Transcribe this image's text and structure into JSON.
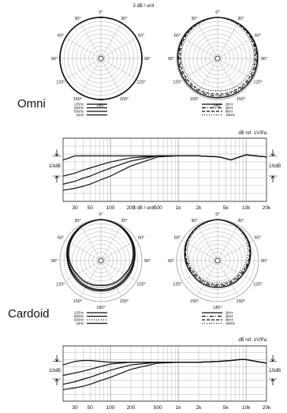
{
  "header_units": "3 dB / unit",
  "sections": [
    {
      "title": "Omni",
      "polar_scale": "3 dB / unit",
      "angles": [
        "0°",
        "30°",
        "60°",
        "90°",
        "120°",
        "150°",
        "180°",
        "150°",
        "120°",
        "90°",
        "60°",
        "30°"
      ],
      "legend_left": [
        {
          "label": "125Hz",
          "style": "solid"
        },
        {
          "label": "250Hz",
          "style": "solid"
        },
        {
          "label": "500Hz",
          "style": "solid"
        },
        {
          "label": "1kHz",
          "style": "solid"
        }
      ],
      "legend_right": [
        {
          "label": "2kHz",
          "style": "solid"
        },
        {
          "label": "4kHz",
          "style": "dashdot"
        },
        {
          "label": "8kHz",
          "style": "dash"
        },
        {
          "label": "16kHz",
          "style": "dot"
        }
      ],
      "freq": {
        "ref_label": "dB ref. 1V/Pa",
        "scale_left": "10dB",
        "scale_right": "10dB",
        "ticks": [
          "30",
          "50",
          "100",
          "200",
          "500",
          "1k",
          "2k",
          "5k",
          "10k",
          "20k"
        ]
      }
    },
    {
      "title": "Cardoid",
      "polar_scale": "3 dB / unit",
      "angles": [
        "0°",
        "30°",
        "60°",
        "90°",
        "120°",
        "150°",
        "180°",
        "150°",
        "120°",
        "90°",
        "60°",
        "30°"
      ],
      "legend_left": [
        {
          "label": "125Hz",
          "style": "solid"
        },
        {
          "label": "250Hz",
          "style": "solid"
        },
        {
          "label": "500Hz",
          "style": "dot"
        },
        {
          "label": "1kHz",
          "style": "solid"
        }
      ],
      "legend_right": [
        {
          "label": "2kHz",
          "style": "solid"
        },
        {
          "label": "4kHz",
          "style": "dashdot"
        },
        {
          "label": "8kHz",
          "style": "dash"
        },
        {
          "label": "16kHz",
          "style": "dot"
        }
      ],
      "freq": {
        "ref_label": "dB ref. 1V/Pa",
        "scale_left": "10dB",
        "scale_right": "10dB",
        "ticks": [
          "30",
          "50",
          "100",
          "200",
          "500",
          "1k",
          "2k",
          "5k",
          "10k",
          "20k"
        ]
      }
    }
  ],
  "chart_data": [
    {
      "type": "polar",
      "section": "Omni",
      "position": "left",
      "series": [
        {
          "name": "125Hz",
          "values_db": [
            0,
            0,
            0,
            0,
            0,
            0,
            0
          ]
        },
        {
          "name": "250Hz",
          "values_db": [
            0,
            0,
            0,
            0,
            0,
            0,
            0
          ]
        },
        {
          "name": "500Hz",
          "values_db": [
            0,
            0,
            0,
            0,
            0,
            0,
            0
          ]
        },
        {
          "name": "1kHz",
          "values_db": [
            0,
            0,
            0,
            0,
            0,
            0,
            0
          ]
        }
      ],
      "angles_deg": [
        0,
        30,
        60,
        90,
        120,
        150,
        180
      ]
    },
    {
      "type": "polar",
      "section": "Omni",
      "position": "right",
      "series": [
        {
          "name": "2kHz",
          "values_db": [
            0,
            -0.3,
            -0.5,
            -0.8,
            -1,
            -1.2,
            -1.3
          ]
        },
        {
          "name": "4kHz",
          "values_db": [
            0,
            -0.5,
            -1,
            -1.5,
            -2,
            -2.3,
            -2.5
          ]
        },
        {
          "name": "8kHz",
          "values_db": [
            0,
            -0.8,
            -1.5,
            -2.5,
            -3,
            -3.5,
            -4
          ]
        },
        {
          "name": "16kHz",
          "values_db": [
            0,
            -1.5,
            -2.5,
            -3.5,
            -4.5,
            -5.5,
            -6.5
          ]
        }
      ],
      "angles_deg": [
        0,
        30,
        60,
        90,
        120,
        150,
        180
      ]
    },
    {
      "type": "line",
      "section": "Omni",
      "x_scale": "log",
      "xlim": [
        20,
        20000
      ],
      "ylabel": "dB ref. 1V/Pa",
      "x": [
        20,
        30,
        40,
        50,
        70,
        100,
        200,
        500,
        1000,
        2000,
        4000,
        6000,
        8000,
        10000,
        14000,
        20000
      ],
      "series": [
        {
          "values": [
            -2,
            0,
            0,
            0,
            0,
            0,
            0,
            0,
            0,
            0,
            -0.5,
            -2,
            -0.5,
            0.5,
            0,
            -0.5
          ]
        },
        {
          "values": [
            -10,
            -8.5,
            -7,
            -6,
            -4.5,
            -3,
            -1,
            0,
            0,
            0,
            -0.5,
            -2,
            -0.5,
            0.5,
            0,
            -0.5
          ]
        },
        {
          "values": [
            -14,
            -12.5,
            -11,
            -10,
            -8,
            -6,
            -2.5,
            0,
            0,
            0,
            -0.5,
            -2,
            -0.5,
            0.5,
            0,
            -0.5
          ]
        },
        {
          "values": [
            -17,
            -16,
            -15,
            -14,
            -12,
            -10,
            -5,
            -0.5,
            0,
            0,
            -0.5,
            -2,
            -0.5,
            0.5,
            0,
            -0.5
          ]
        }
      ]
    },
    {
      "type": "polar",
      "section": "Cardoid",
      "position": "left",
      "series": [
        {
          "name": "125Hz",
          "values_db": [
            0,
            -1,
            -3,
            -5.5,
            -7,
            -7.5,
            -7.8
          ]
        },
        {
          "name": "250Hz",
          "values_db": [
            0,
            -1.2,
            -3.2,
            -6,
            -8,
            -8.5,
            -8.8
          ]
        },
        {
          "name": "500Hz",
          "values_db": [
            0,
            -1.3,
            -3.5,
            -6.5,
            -9,
            -10,
            -10.5
          ]
        },
        {
          "name": "1kHz",
          "values_db": [
            0,
            -1.5,
            -4,
            -7,
            -10,
            -11,
            -12
          ]
        }
      ],
      "angles_deg": [
        0,
        30,
        60,
        90,
        120,
        150,
        180
      ]
    },
    {
      "type": "polar",
      "section": "Cardoid",
      "position": "right",
      "series": [
        {
          "name": "2kHz",
          "values_db": [
            0,
            -1.2,
            -3.5,
            -6.5,
            -9,
            -10,
            -10.5
          ]
        },
        {
          "name": "4kHz",
          "values_db": [
            0,
            -1.3,
            -3.8,
            -7,
            -10,
            -11,
            -11.5
          ]
        },
        {
          "name": "8kHz",
          "values_db": [
            0,
            -1.5,
            -4,
            -7.5,
            -11,
            -12,
            -12.5
          ]
        },
        {
          "name": "16kHz",
          "values_db": [
            0,
            -2,
            -5,
            -9,
            -12,
            -13,
            -14
          ]
        }
      ],
      "angles_deg": [
        0,
        30,
        60,
        90,
        120,
        150,
        180
      ]
    },
    {
      "type": "line",
      "section": "Cardoid",
      "x_scale": "log",
      "xlim": [
        20,
        20000
      ],
      "ylabel": "dB ref. 1V/Pa",
      "x": [
        20,
        30,
        40,
        50,
        70,
        100,
        200,
        500,
        1000,
        2000,
        4000,
        6000,
        8000,
        10000,
        14000,
        20000
      ],
      "series": [
        {
          "values": [
            -2,
            0,
            0.5,
            0.5,
            0,
            -0.5,
            -0.5,
            -0.5,
            -0.5,
            -0.5,
            0,
            0.5,
            1,
            1,
            0,
            -1
          ]
        },
        {
          "values": [
            -8,
            -6.5,
            -5.5,
            -4.5,
            -3,
            -1.5,
            -0.5,
            -0.5,
            -0.5,
            -0.5,
            0,
            0.5,
            1,
            1,
            0,
            -1
          ]
        },
        {
          "values": [
            -13,
            -11.5,
            -10,
            -9,
            -7,
            -5,
            -2,
            -0.5,
            -0.5,
            -0.5,
            0,
            0.5,
            1,
            1,
            0,
            -1
          ]
        },
        {
          "values": [
            -16,
            -15,
            -14,
            -13,
            -11,
            -9,
            -4.5,
            -1,
            -0.5,
            -0.5,
            0,
            0.5,
            1,
            1,
            0,
            -1
          ]
        }
      ]
    }
  ]
}
